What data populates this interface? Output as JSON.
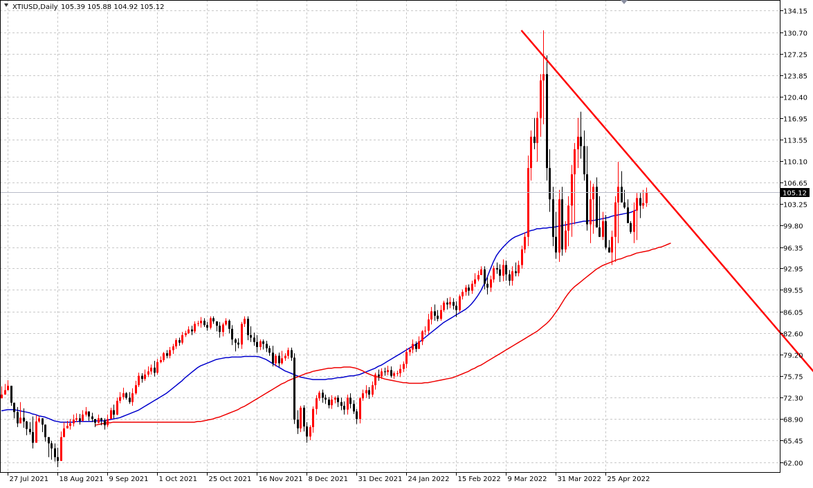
{
  "chart_data": {
    "type": "candlestick",
    "title": "XTIUSD,Daily",
    "ohlc_label": "105.39 105.88 104.92 105.12",
    "last_price": 105.12,
    "last_price_label": "105.12",
    "ylim": [
      60.3,
      135.85
    ],
    "y_ticks": [
      "134.15",
      "130.70",
      "127.25",
      "123.85",
      "120.40",
      "116.95",
      "113.55",
      "110.10",
      "106.65",
      "103.25",
      "99.80",
      "96.35",
      "92.95",
      "89.55",
      "86.05",
      "82.60",
      "79.20",
      "75.75",
      "72.30",
      "68.90",
      "65.45",
      "62.00"
    ],
    "x_ticks": [
      {
        "label": "27 Jul 2021",
        "index": 2
      },
      {
        "label": "18 Aug 2021",
        "index": 18
      },
      {
        "label": "9 Sep 2021",
        "index": 34
      },
      {
        "label": "1 Oct 2021",
        "index": 50
      },
      {
        "label": "25 Oct 2021",
        "index": 66
      },
      {
        "label": "16 Nov 2021",
        "index": 82
      },
      {
        "label": "8 Dec 2021",
        "index": 98
      },
      {
        "label": "31 Dec 2021",
        "index": 114
      },
      {
        "label": "24 Jan 2022",
        "index": 130
      },
      {
        "label": "15 Feb 2022",
        "index": 146
      },
      {
        "label": "9 Mar 2022",
        "index": 162
      },
      {
        "label": "31 Mar 2022",
        "index": 178
      },
      {
        "label": "25 Apr 2022",
        "index": 194
      }
    ],
    "bull_color": "#ff0000",
    "bear_color": "#000000",
    "series": [
      {
        "type": "candlestick",
        "closes": [
          72.8,
          73.5,
          74.2,
          71.5,
          70.0,
          68.2,
          69.1,
          68.5,
          67.3,
          66.8,
          65.1,
          68.5,
          69.0,
          68.0,
          66.0,
          65.0,
          64.2,
          62.8,
          62.2,
          66.0,
          67.4,
          67.8,
          68.2,
          68.8,
          69.0,
          68.6,
          69.6,
          70.1,
          69.3,
          68.9,
          68.3,
          69.0,
          68.7,
          67.9,
          68.9,
          70.3,
          69.6,
          71.8,
          72.4,
          73.0,
          72.3,
          71.6,
          73.0,
          74.3,
          75.8,
          75.3,
          76.0,
          76.5,
          77.1,
          76.3,
          78.0,
          78.3,
          79.4,
          79.0,
          79.9,
          80.5,
          81.5,
          81.1,
          82.3,
          82.6,
          83.2,
          82.9,
          84.1,
          84.2,
          84.6,
          83.9,
          83.5,
          85.0,
          84.5,
          83.8,
          82.8,
          84.0,
          84.6,
          83.3,
          81.6,
          81.1,
          80.8,
          84.1,
          84.9,
          82.3,
          81.9,
          81.2,
          80.4,
          81.3,
          80.9,
          80.2,
          79.5,
          77.8,
          79.0,
          77.8,
          78.6,
          79.0,
          79.9,
          78.7,
          68.8,
          67.4,
          70.7,
          67.7,
          66.1,
          67.6,
          70.5,
          72.2,
          73.1,
          72.3,
          72.0,
          71.1,
          72.0,
          72.3,
          71.6,
          71.0,
          70.4,
          72.3,
          71.3,
          70.1,
          68.9,
          72.2,
          73.0,
          73.5,
          72.8,
          74.3,
          76.0,
          75.7,
          76.5,
          76.4,
          76.7,
          75.8,
          76.2,
          76.2,
          76.9,
          77.7,
          79.6,
          80.0,
          80.9,
          80.1,
          81.3,
          82.9,
          83.0,
          84.8,
          86.1,
          85.4,
          84.9,
          86.3,
          87.5,
          87.2,
          87.6,
          87.0,
          86.3,
          88.5,
          89.2,
          89.9,
          89.4,
          90.5,
          91.2,
          91.9,
          92.8,
          90.5,
          89.9,
          91.2,
          93.0,
          92.8,
          91.8,
          93.5,
          92.0,
          91.0,
          92.5,
          92.2,
          93.5,
          96.0,
          98.0,
          109.0,
          114.0,
          113.0,
          117.0,
          123.0,
          124.0,
          109.0,
          104.0,
          98.0,
          95.5,
          104.0,
          96.0,
          99.0,
          103.0,
          108.0,
          112.0,
          114.0,
          112.5,
          108.0,
          100.0,
          104.0,
          106.0,
          99.5,
          98.0,
          100.5,
          96.3,
          95.5,
          98.0,
          103.5,
          106.0,
          103.5,
          102.7,
          100.2,
          98.8,
          102.2,
          104.2,
          103.0,
          103.4,
          105.12
        ],
        "highs": [
          74.1,
          74.5,
          75.1,
          74.0,
          71.5,
          70.8,
          71.6,
          70.6,
          68.6,
          68.4,
          69.3,
          69.5,
          69.4,
          68.6,
          66.6,
          65.5,
          65.4,
          65.0,
          64.3,
          66.9,
          68.4,
          68.6,
          68.9,
          69.6,
          69.8,
          69.7,
          70.3,
          70.8,
          70.1,
          69.9,
          68.9,
          69.6,
          69.1,
          69.0,
          69.6,
          70.7,
          71.2,
          72.3,
          73.2,
          73.9,
          73.2,
          73.2,
          73.8,
          75.0,
          76.3,
          76.2,
          76.8,
          77.3,
          77.6,
          78.2,
          78.5,
          78.9,
          79.6,
          79.9,
          80.4,
          80.9,
          81.8,
          81.9,
          82.8,
          83.0,
          83.7,
          83.8,
          84.5,
          84.6,
          85.2,
          85.0,
          84.4,
          85.3,
          85.3,
          84.5,
          84.4,
          84.3,
          85.0,
          84.8,
          83.9,
          81.8,
          81.8,
          84.4,
          85.3,
          85.3,
          83.7,
          82.7,
          82.3,
          81.6,
          81.6,
          81.4,
          80.6,
          80.6,
          79.3,
          79.5,
          79.8,
          79.4,
          80.3,
          80.3,
          79.4,
          70.3,
          71.0,
          71.1,
          68.4,
          67.9,
          70.9,
          72.7,
          73.4,
          73.6,
          72.8,
          72.4,
          72.7,
          72.5,
          72.7,
          72.3,
          71.7,
          72.8,
          73.0,
          71.9,
          70.5,
          72.4,
          73.6,
          74.3,
          74.0,
          74.9,
          76.3,
          76.8,
          77.0,
          77.1,
          77.4,
          77.3,
          76.5,
          76.6,
          77.6,
          78.1,
          80.2,
          80.4,
          81.6,
          81.3,
          82.1,
          83.1,
          83.7,
          85.7,
          86.8,
          87.2,
          86.3,
          87.1,
          87.8,
          88.2,
          88.4,
          88.2,
          87.7,
          88.8,
          89.6,
          90.3,
          90.4,
          91.0,
          92.2,
          92.6,
          93.3,
          93.3,
          91.5,
          91.8,
          93.4,
          93.9,
          93.6,
          94.4,
          94.2,
          92.7,
          93.3,
          93.9,
          94.2,
          96.6,
          98.7,
          111.0,
          115.0,
          117.0,
          118.0,
          124.0,
          131.0,
          127.0,
          112.0,
          106.0,
          102.0,
          105.5,
          106.0,
          100.5,
          104.5,
          109.5,
          113.0,
          117.0,
          118.0,
          115.0,
          112.5,
          107.0,
          106.5,
          107.5,
          104.5,
          102.0,
          101.5,
          97.5,
          99.0,
          104.5,
          110.0,
          108.5,
          105.5,
          104.0,
          100.5,
          103.5,
          105.0,
          105.0,
          105.5,
          105.88
        ],
        "lows": [
          72.4,
          72.8,
          73.5,
          71.0,
          69.0,
          67.6,
          68.3,
          67.5,
          66.3,
          66.4,
          64.2,
          65.5,
          68.3,
          66.8,
          65.3,
          62.8,
          62.4,
          62.1,
          61.2,
          62.2,
          66.6,
          67.4,
          67.2,
          67.7,
          68.4,
          68.0,
          68.5,
          69.3,
          68.6,
          68.4,
          67.6,
          68.2,
          67.9,
          67.2,
          67.6,
          69.1,
          69.0,
          69.5,
          71.4,
          72.0,
          72.0,
          71.3,
          71.0,
          72.8,
          74.0,
          74.7,
          75.0,
          75.6,
          76.0,
          75.7,
          76.0,
          77.8,
          78.0,
          78.6,
          78.6,
          79.3,
          80.1,
          80.6,
          80.8,
          82.0,
          82.5,
          82.3,
          82.6,
          83.7,
          83.5,
          83.6,
          83.0,
          83.2,
          84.1,
          82.9,
          81.9,
          82.1,
          83.8,
          82.6,
          80.7,
          79.7,
          80.2,
          80.1,
          83.6,
          81.5,
          81.2,
          80.6,
          79.5,
          79.9,
          80.0,
          79.6,
          79.0,
          77.3,
          77.3,
          77.2,
          77.6,
          78.2,
          78.5,
          78.2,
          68.1,
          66.5,
          66.8,
          66.9,
          65.1,
          65.5,
          66.7,
          69.6,
          71.8,
          71.5,
          71.3,
          70.6,
          70.5,
          71.4,
          70.8,
          70.3,
          69.6,
          69.6,
          70.6,
          69.7,
          68.1,
          68.2,
          71.8,
          72.3,
          72.1,
          72.4,
          73.6,
          75.0,
          75.3,
          75.8,
          75.9,
          75.5,
          75.3,
          75.7,
          75.6,
          76.4,
          77.0,
          79.0,
          79.4,
          79.6,
          80.2,
          80.7,
          82.3,
          82.4,
          84.0,
          84.6,
          84.5,
          84.6,
          86.0,
          86.4,
          86.6,
          86.4,
          85.2,
          86.0,
          88.0,
          88.6,
          88.6,
          88.9,
          90.0,
          90.9,
          91.9,
          89.6,
          88.8,
          89.2,
          90.7,
          92.1,
          90.8,
          90.9,
          91.0,
          90.2,
          90.2,
          91.7,
          91.7,
          92.9,
          95.4,
          96.5,
          107.0,
          112.0,
          110.0,
          114.0,
          116.0,
          107.0,
          102.0,
          96.5,
          94.5,
          94.0,
          95.0,
          95.5,
          96.5,
          98.0,
          100.0,
          109.0,
          110.5,
          107.0,
          99.0,
          97.0,
          98.5,
          103.0,
          98.5,
          97.5,
          96.0,
          95.5,
          93.5,
          94.0,
          97.0,
          103.5,
          102.5,
          101.5,
          98.5,
          97.0,
          97.5,
          101.0,
          102.5,
          102.8,
          104.92
        ]
      },
      {
        "name": "",
        "type": "line",
        "color": "#0000cc",
        "values": [
          70.2,
          70.3,
          70.4,
          70.4,
          70.4,
          70.3,
          70.2,
          70.1,
          70.0,
          69.9,
          69.7,
          69.6,
          69.4,
          69.3,
          69.2,
          69.0,
          68.8,
          68.6,
          68.5,
          68.4,
          68.4,
          68.4,
          68.4,
          68.4,
          68.5,
          68.5,
          68.5,
          68.5,
          68.5,
          68.5,
          68.6,
          68.6,
          68.6,
          68.6,
          68.7,
          68.8,
          68.9,
          69.0,
          69.1,
          69.3,
          69.5,
          69.7,
          69.9,
          70.1,
          70.3,
          70.6,
          70.9,
          71.2,
          71.5,
          71.8,
          72.1,
          72.4,
          72.7,
          73.0,
          73.4,
          73.8,
          74.2,
          74.6,
          75.0,
          75.5,
          75.9,
          76.3,
          76.7,
          77.1,
          77.4,
          77.6,
          77.8,
          78.0,
          78.2,
          78.4,
          78.5,
          78.6,
          78.7,
          78.7,
          78.8,
          78.8,
          78.8,
          78.8,
          78.9,
          78.9,
          78.9,
          78.9,
          78.9,
          78.8,
          78.6,
          78.4,
          78.1,
          77.8,
          77.5,
          77.2,
          76.9,
          76.6,
          76.4,
          76.2,
          76.0,
          75.8,
          75.6,
          75.5,
          75.4,
          75.3,
          75.2,
          75.2,
          75.2,
          75.2,
          75.2,
          75.3,
          75.3,
          75.4,
          75.5,
          75.5,
          75.6,
          75.7,
          75.8,
          75.8,
          75.9,
          76.0,
          76.2,
          76.4,
          76.6,
          76.8,
          77.0,
          77.3,
          77.5,
          77.8,
          78.1,
          78.4,
          78.7,
          79.0,
          79.3,
          79.6,
          79.9,
          80.2,
          80.5,
          80.8,
          81.1,
          81.5,
          81.9,
          82.3,
          82.7,
          83.1,
          83.5,
          83.9,
          84.3,
          84.6,
          84.9,
          85.2,
          85.5,
          85.8,
          86.1,
          86.4,
          86.8,
          87.3,
          87.9,
          88.6,
          89.4,
          90.4,
          91.5,
          92.8,
          94.0,
          95.0,
          95.7,
          96.3,
          96.8,
          97.3,
          97.7,
          98.0,
          98.2,
          98.4,
          98.6,
          98.8,
          99.0,
          99.1,
          99.3,
          99.3,
          99.4,
          99.4,
          99.5,
          99.5,
          99.6,
          99.7,
          99.8,
          99.9,
          100.0,
          100.1,
          100.2,
          100.3,
          100.4,
          100.5,
          100.5,
          100.6,
          100.6,
          100.7,
          100.8,
          100.9,
          101.0,
          101.1,
          101.3,
          101.4,
          101.5,
          101.6,
          101.7,
          101.8,
          101.9,
          102.1,
          102.3
        ],
        "start_index": 0
      },
      {
        "name": "",
        "type": "line",
        "color": "#ee0000",
        "values": [
          67.9,
          68.0,
          68.1,
          68.2,
          68.3,
          68.3,
          68.4,
          68.4,
          68.4,
          68.4,
          68.4,
          68.4,
          68.4,
          68.4,
          68.4,
          68.4,
          68.4,
          68.4,
          68.4,
          68.4,
          68.4,
          68.4,
          68.4,
          68.4,
          68.4,
          68.4,
          68.4,
          68.4,
          68.4,
          68.4,
          68.4,
          68.4,
          68.4,
          68.5,
          68.5,
          68.6,
          68.7,
          68.8,
          68.9,
          69.1,
          69.2,
          69.4,
          69.6,
          69.8,
          70.0,
          70.2,
          70.4,
          70.7,
          70.9,
          71.2,
          71.5,
          71.8,
          72.1,
          72.4,
          72.7,
          73.0,
          73.3,
          73.6,
          73.9,
          74.2,
          74.5,
          74.7,
          75.0,
          75.2,
          75.4,
          75.6,
          75.8,
          76.0,
          76.2,
          76.3,
          76.5,
          76.6,
          76.7,
          76.8,
          76.9,
          77.0,
          77.0,
          77.1,
          77.1,
          77.1,
          77.2,
          77.2,
          77.2,
          77.1,
          77.0,
          76.8,
          76.6,
          76.3,
          76.1,
          75.9,
          75.7,
          75.6,
          75.5,
          75.3,
          75.2,
          75.1,
          75.0,
          74.9,
          74.8,
          74.7,
          74.7,
          74.6,
          74.6,
          74.6,
          74.6,
          74.6,
          74.7,
          74.7,
          74.8,
          74.9,
          75.0,
          75.1,
          75.2,
          75.3,
          75.4,
          75.5,
          75.7,
          75.9,
          76.1,
          76.3,
          76.5,
          76.8,
          77.0,
          77.3,
          77.5,
          77.8,
          78.1,
          78.4,
          78.7,
          79.0,
          79.3,
          79.6,
          79.9,
          80.2,
          80.5,
          80.8,
          81.1,
          81.4,
          81.7,
          82.0,
          82.3,
          82.6,
          82.9,
          83.3,
          83.7,
          84.1,
          84.6,
          85.2,
          85.9,
          86.6,
          87.4,
          88.2,
          88.9,
          89.5,
          90.0,
          90.4,
          90.8,
          91.2,
          91.6,
          92.0,
          92.4,
          92.8,
          93.1,
          93.4,
          93.6,
          93.8,
          94.0,
          94.2,
          94.4,
          94.5,
          94.7,
          94.9,
          95.0,
          95.2,
          95.4,
          95.5,
          95.6,
          95.7,
          95.8,
          96.0,
          96.1,
          96.3,
          96.4,
          96.6,
          96.8,
          97.0
        ],
        "start_index": 30
      },
      {
        "name": "",
        "type": "line",
        "color": "#ff0000",
        "points": [
          {
            "x": 167,
            "y": 131.0
          },
          {
            "x": 280.6,
            "y": 65.0
          }
        ]
      }
    ]
  }
}
